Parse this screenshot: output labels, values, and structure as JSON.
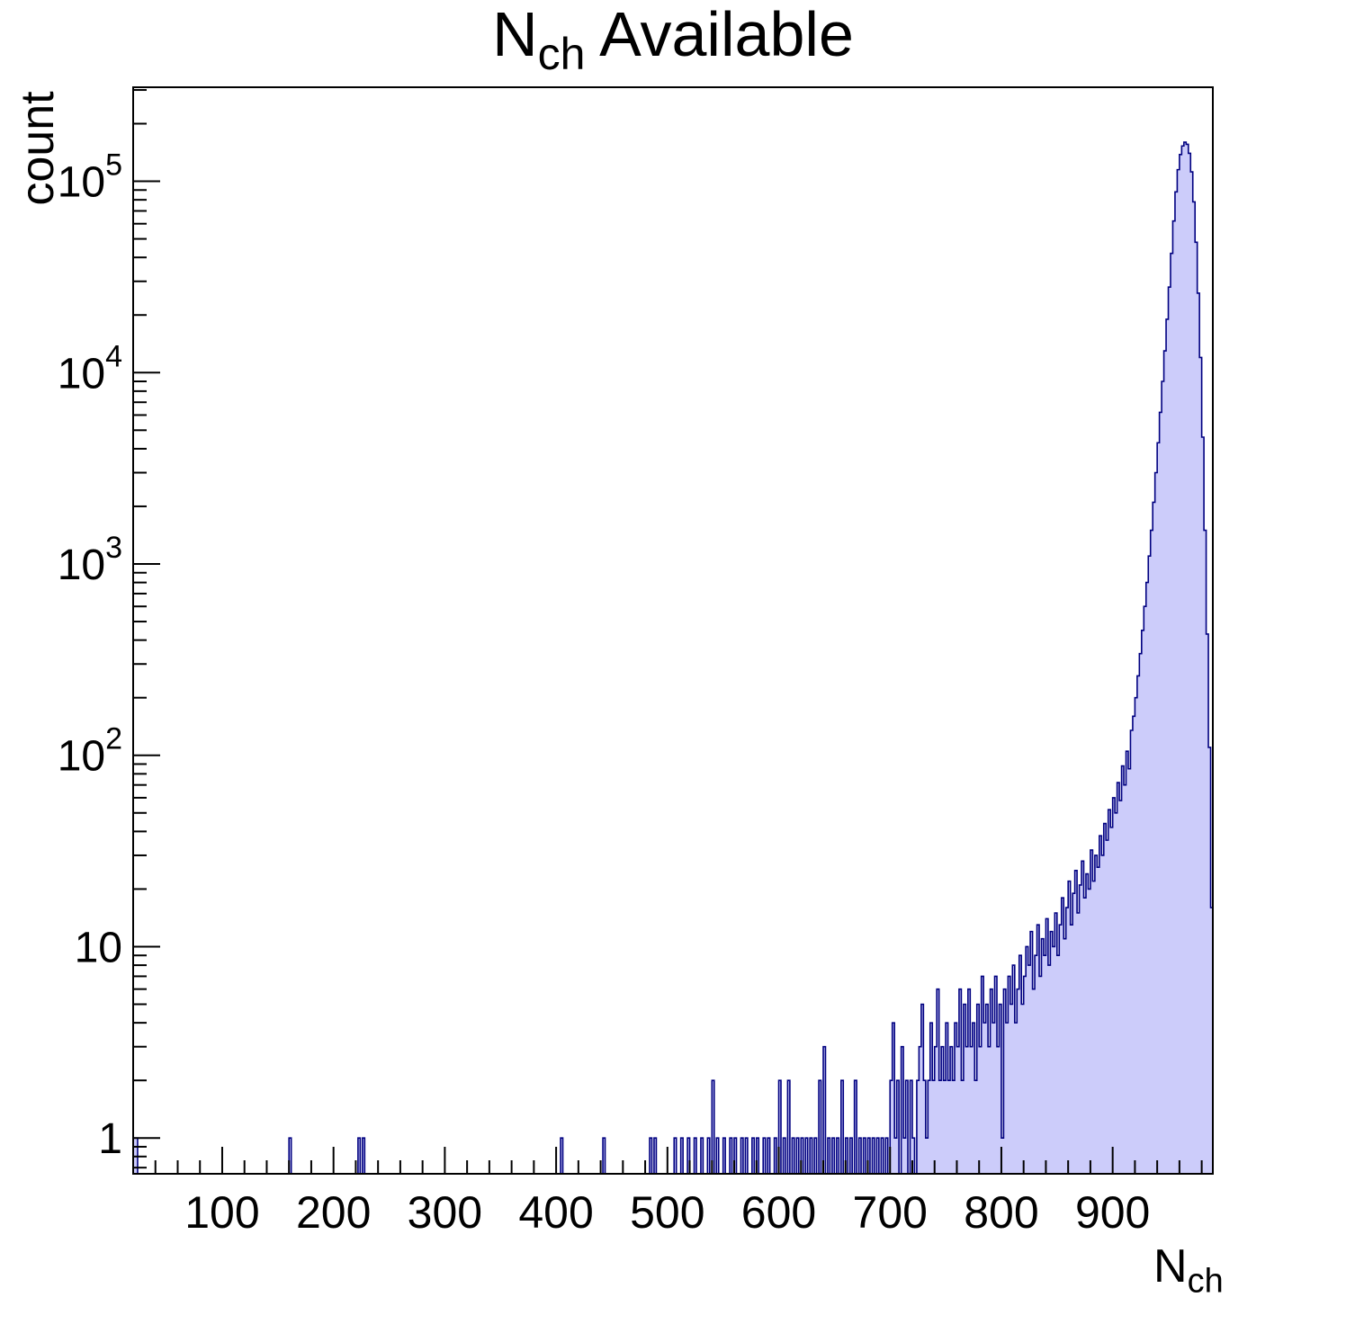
{
  "chart_data": {
    "type": "histogram",
    "title_main": "N",
    "title_sub": "ch",
    "title_rest": " Available",
    "ylabel": "count",
    "xlabel_main": "N",
    "xlabel_sub": "ch",
    "x_min": 20,
    "x_max": 990,
    "bin_width": 2,
    "y_scale": "log",
    "y_min": 0.65,
    "y_max": 310000,
    "x_major_ticks": [
      100,
      200,
      300,
      400,
      500,
      600,
      700,
      800,
      900
    ],
    "x_minor_step": 20,
    "y_major_ticks": [
      {
        "value": 1,
        "base": "1",
        "exp": ""
      },
      {
        "value": 10,
        "base": "10",
        "exp": ""
      },
      {
        "value": 100,
        "base": "10",
        "exp": "2"
      },
      {
        "value": 1000,
        "base": "10",
        "exp": "3"
      },
      {
        "value": 10000,
        "base": "10",
        "exp": "4"
      },
      {
        "value": 100000,
        "base": "10",
        "exp": "5"
      }
    ],
    "colors": {
      "fill": "#ccccfa",
      "line": "#000080",
      "axis": "#000000",
      "background": "#ffffff",
      "text": "#000000"
    },
    "sparse_bins": [
      [
        20,
        1
      ],
      [
        22,
        1
      ],
      [
        160,
        1
      ],
      [
        222,
        1
      ],
      [
        226,
        1
      ],
      [
        404,
        1
      ],
      [
        442,
        1
      ],
      [
        484,
        1
      ],
      [
        488,
        1
      ],
      [
        506,
        1
      ],
      [
        512,
        1
      ],
      [
        518,
        1
      ],
      [
        524,
        1
      ],
      [
        530,
        1
      ],
      [
        536,
        1
      ],
      [
        540,
        2
      ],
      [
        544,
        1
      ],
      [
        550,
        1
      ],
      [
        556,
        1
      ],
      [
        560,
        1
      ],
      [
        566,
        1
      ],
      [
        570,
        1
      ],
      [
        576,
        1
      ],
      [
        580,
        1
      ],
      [
        586,
        1
      ],
      [
        590,
        1
      ],
      [
        596,
        1
      ],
      [
        600,
        2
      ],
      [
        604,
        1
      ],
      [
        608,
        2
      ],
      [
        612,
        1
      ],
      [
        616,
        1
      ],
      [
        620,
        1
      ],
      [
        624,
        1
      ],
      [
        628,
        1
      ],
      [
        632,
        1
      ],
      [
        636,
        2
      ],
      [
        640,
        3
      ],
      [
        644,
        1
      ],
      [
        648,
        1
      ],
      [
        652,
        1
      ],
      [
        656,
        2
      ],
      [
        660,
        1
      ],
      [
        664,
        1
      ],
      [
        668,
        2
      ],
      [
        672,
        1
      ],
      [
        676,
        1
      ],
      [
        680,
        1
      ],
      [
        684,
        1
      ],
      [
        688,
        1
      ],
      [
        692,
        1
      ],
      [
        696,
        1
      ]
    ],
    "dense_bins": {
      "start": 700,
      "counts": [
        2,
        4,
        1,
        2,
        0,
        3,
        1,
        2,
        0,
        2,
        1,
        0,
        2,
        3,
        5,
        2,
        1,
        2,
        4,
        2,
        3,
        6,
        2,
        3,
        2,
        4,
        2,
        3,
        2,
        4,
        3,
        6,
        2,
        5,
        3,
        6,
        3,
        4,
        2,
        5,
        3,
        7,
        4,
        5,
        3,
        6,
        4,
        7,
        3,
        5,
        1,
        6,
        4,
        7,
        5,
        8,
        4,
        6,
        9,
        5,
        7,
        10,
        8,
        12,
        6,
        9,
        13,
        7,
        11,
        9,
        14,
        8,
        12,
        10,
        15,
        9,
        13,
        18,
        11,
        16,
        22,
        13,
        19,
        25,
        15,
        21,
        28,
        18,
        24,
        20,
        32,
        22,
        30,
        26,
        38,
        30,
        44,
        36,
        52,
        42,
        60,
        50,
        72,
        58,
        88,
        70,
        105,
        85,
        135,
        160,
        200,
        260,
        340,
        450,
        600,
        800,
        1100,
        1500,
        2100,
        3000,
        4300,
        6200,
        9000,
        13000,
        19000,
        28000,
        42000,
        62000,
        88000,
        115000,
        138000,
        153000,
        160000,
        156000,
        140000,
        112000,
        78000,
        48000,
        26000,
        12000,
        4600,
        1500,
        430,
        110,
        16
      ]
    }
  }
}
